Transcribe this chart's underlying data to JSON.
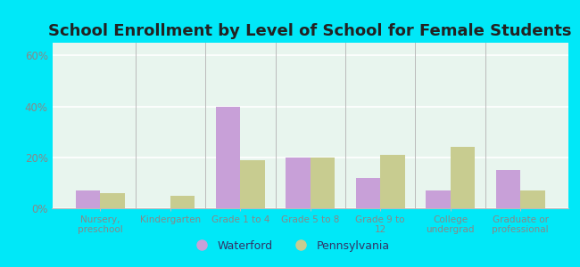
{
  "title": "School Enrollment by Level of School for Female Students",
  "categories": [
    "Nursery,\npreschool",
    "Kindergarten",
    "Grade 1 to 4",
    "Grade 5 to 8",
    "Grade 9 to\n12",
    "College\nundergrad",
    "Graduate or\nprofessional"
  ],
  "waterford": [
    7,
    0,
    40,
    20,
    12,
    7,
    15
  ],
  "pennsylvania": [
    6,
    5,
    19,
    20,
    21,
    24,
    7
  ],
  "waterford_color": "#c8a0d8",
  "pennsylvania_color": "#c8cc90",
  "background_color": "#00e8f8",
  "plot_bg": "#e8f5ee",
  "ylim": [
    0,
    65
  ],
  "yticks": [
    0,
    20,
    40,
    60
  ],
  "ytick_labels": [
    "0%",
    "20%",
    "40%",
    "60%"
  ],
  "legend_waterford": "Waterford",
  "legend_pennsylvania": "Pennsylvania",
  "title_fontsize": 13,
  "bar_width": 0.35,
  "tick_color": "#888888",
  "grid_color": "#ffffff"
}
